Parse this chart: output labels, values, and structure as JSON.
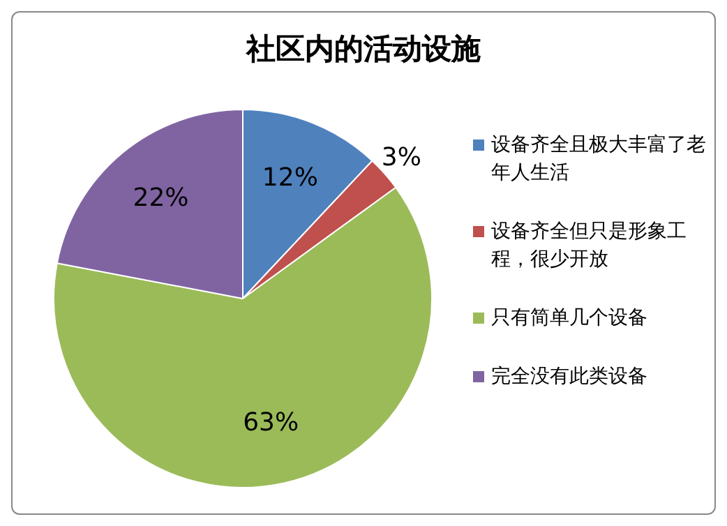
{
  "chart_data": {
    "type": "pie",
    "title": "社区内的活动设施",
    "categories": [
      "设备齐全且极大丰富了老年人生活",
      "设备齐全但只是形象工程，很少开放",
      "只有简单几个设备",
      "完全没有此类设备"
    ],
    "values": [
      12,
      3,
      63,
      22
    ],
    "value_labels": [
      "12%",
      "3%",
      "63%",
      "22%"
    ],
    "colors": [
      "#4f81bd",
      "#c0504d",
      "#9bbb59",
      "#8064a2"
    ],
    "legend": "right"
  }
}
